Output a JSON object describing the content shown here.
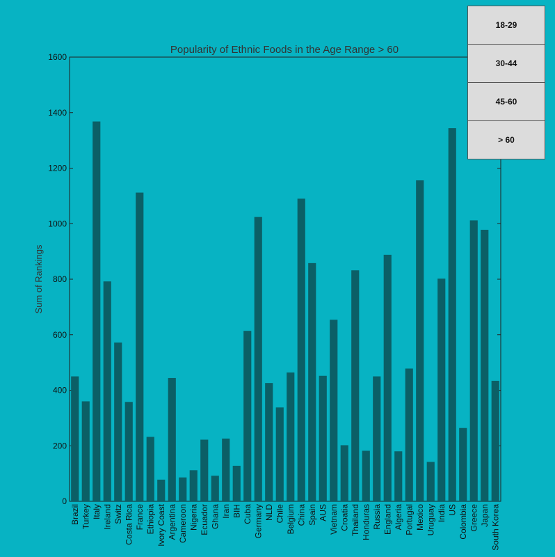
{
  "chart_data": {
    "type": "bar",
    "title": "Popularity of Ethnic Foods in the Age Range > 60",
    "xlabel": "",
    "ylabel": "Sum of Rankings",
    "ylim": [
      0,
      1600
    ],
    "yticks": [
      0,
      200,
      400,
      600,
      800,
      1000,
      1200,
      1400,
      1600
    ],
    "bar_color": "#0b5f66",
    "categories": [
      "Brazil",
      "Turkey",
      "Italy",
      "Ireland",
      "Switz",
      "Costa Rica",
      "France",
      "Ethiopia",
      "Ivory Coast",
      "Argentina",
      "Cameroon",
      "Nigeria",
      "Ecuador",
      "Ghana",
      "Iran",
      "BIH",
      "Cuba",
      "Germany",
      "NLD",
      "Chile",
      "Belgium",
      "China",
      "Spain",
      "AUS",
      "Vietnam",
      "Croatia",
      "Thailand",
      "Honduras",
      "Russia",
      "England",
      "Algeria",
      "Portugal",
      "Mexico",
      "Uruguay",
      "India",
      "US",
      "Colombia",
      "Greece",
      "Japan",
      "South Korea"
    ],
    "values": [
      450,
      360,
      1368,
      792,
      572,
      358,
      1112,
      232,
      78,
      444,
      86,
      112,
      222,
      92,
      226,
      128,
      614,
      1024,
      426,
      338,
      464,
      1090,
      858,
      452,
      654,
      202,
      832,
      182,
      450,
      888,
      180,
      478,
      1156,
      142,
      802,
      1344,
      264,
      1012,
      978,
      434
    ]
  },
  "age_buttons": [
    "18-29",
    "30-44",
    "45-60",
    "> 60"
  ],
  "colors": {
    "background": "#07b3c3",
    "plot": "#07b3c3",
    "bar": "#0b5f66"
  }
}
